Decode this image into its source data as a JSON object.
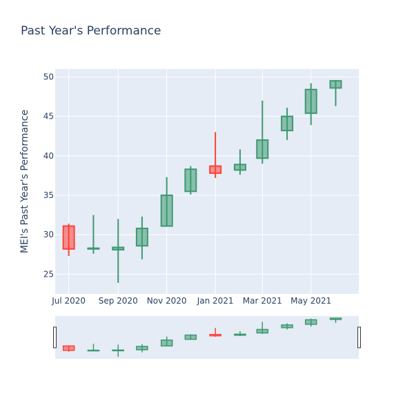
{
  "chart_data": {
    "type": "candlestick",
    "title": "Past Year's Performance",
    "xlabel": "",
    "ylabel": "MEI's Past Year's Performance",
    "ylim": [
      22.5,
      51
    ],
    "yticks": [
      25,
      30,
      35,
      40,
      45,
      50
    ],
    "xlim": [
      "2020-06-14",
      "2021-06-30"
    ],
    "xticks": [
      {
        "date": "2020-07-01",
        "label": "Jul 2020"
      },
      {
        "date": "2020-09-01",
        "label": "Sep 2020"
      },
      {
        "date": "2020-11-01",
        "label": "Nov 2020"
      },
      {
        "date": "2021-01-01",
        "label": "Jan 2021"
      },
      {
        "date": "2021-03-01",
        "label": "Mar 2021"
      },
      {
        "date": "2021-05-01",
        "label": "May 2021"
      }
    ],
    "grid": true,
    "rangeslider": true,
    "increasing_color": "#3d9970",
    "decreasing_color": "#ff4136",
    "candles": [
      {
        "date": "2020-07-01",
        "open": 31.1,
        "high": 31.4,
        "low": 27.3,
        "close": 28.2
      },
      {
        "date": "2020-08-01",
        "open": 28.2,
        "high": 32.5,
        "low": 27.6,
        "close": 28.3
      },
      {
        "date": "2020-09-01",
        "open": 28.1,
        "high": 32.0,
        "low": 23.9,
        "close": 28.4
      },
      {
        "date": "2020-10-01",
        "open": 28.6,
        "high": 32.3,
        "low": 26.9,
        "close": 30.8
      },
      {
        "date": "2020-11-01",
        "open": 31.1,
        "high": 37.3,
        "low": 31.1,
        "close": 35.0
      },
      {
        "date": "2020-12-01",
        "open": 35.5,
        "high": 38.7,
        "low": 35.1,
        "close": 38.3
      },
      {
        "date": "2021-01-01",
        "open": 38.7,
        "high": 43.0,
        "low": 37.2,
        "close": 37.8
      },
      {
        "date": "2021-02-01",
        "open": 38.2,
        "high": 40.8,
        "low": 37.6,
        "close": 38.9
      },
      {
        "date": "2021-03-01",
        "open": 39.7,
        "high": 47.0,
        "low": 39.0,
        "close": 42.0
      },
      {
        "date": "2021-04-01",
        "open": 43.2,
        "high": 46.1,
        "low": 42.0,
        "close": 45.0
      },
      {
        "date": "2021-05-01",
        "open": 45.4,
        "high": 49.2,
        "low": 43.9,
        "close": 48.4
      },
      {
        "date": "2021-06-01",
        "open": 48.6,
        "high": 49.6,
        "low": 46.3,
        "close": 49.5
      }
    ]
  }
}
